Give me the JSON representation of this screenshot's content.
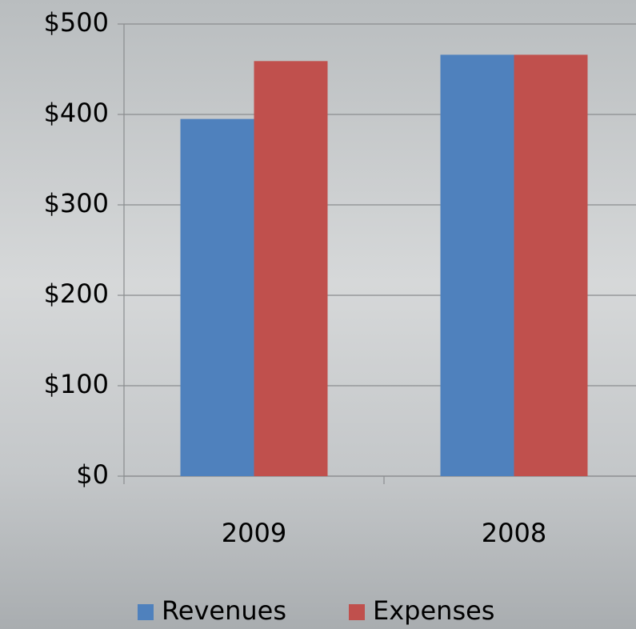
{
  "chart_data": {
    "type": "bar",
    "categories": [
      "2009",
      "2008"
    ],
    "series": [
      {
        "name": "Revenues",
        "color": "#4f81bd",
        "values": [
          395,
          466
        ]
      },
      {
        "name": "Expenses",
        "color": "#c0504d",
        "values": [
          459,
          466
        ]
      }
    ],
    "ylim": [
      0,
      500
    ],
    "yticks": [
      {
        "value": 0,
        "label": "$0"
      },
      {
        "value": 100,
        "label": "$100"
      },
      {
        "value": 200,
        "label": "$200"
      },
      {
        "value": 300,
        "label": "$300"
      },
      {
        "value": 400,
        "label": "$400"
      },
      {
        "value": 500,
        "label": "$500"
      }
    ],
    "grid": true,
    "legend": "bottom"
  }
}
